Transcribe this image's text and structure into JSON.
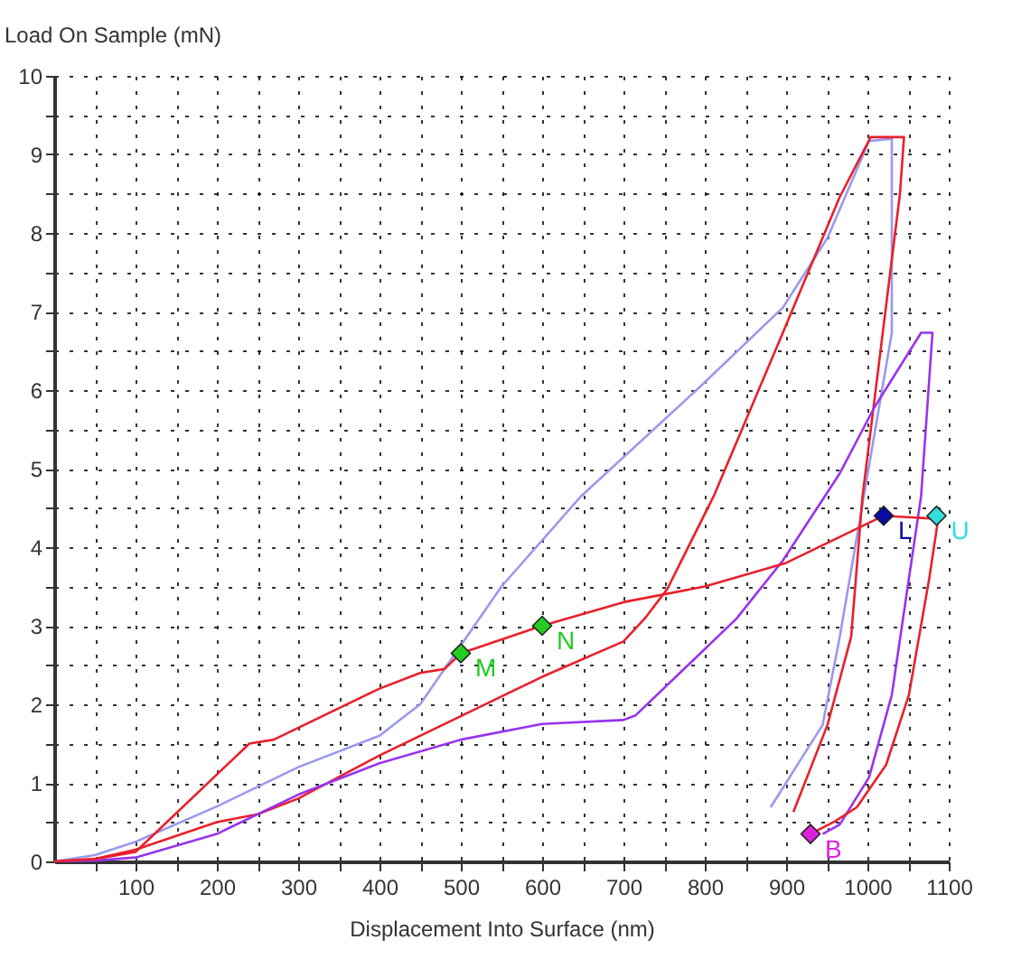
{
  "chart_data": {
    "type": "line",
    "xlabel": "Displacement Into Surface (nm)",
    "ylabel": "Load On Sample (mN)",
    "xlim": [
      0,
      1100
    ],
    "ylim": [
      0,
      10
    ],
    "xticks": [
      {
        "value": 50,
        "label": null
      },
      100,
      {
        "value": 150,
        "label": null
      },
      200,
      {
        "value": 250,
        "label": null
      },
      300,
      {
        "value": 350,
        "label": null
      },
      400,
      {
        "value": 450,
        "label": null
      },
      500,
      {
        "value": 550,
        "label": null
      },
      600,
      {
        "value": 650,
        "label": null
      },
      700,
      {
        "value": 750,
        "label": null
      },
      800,
      {
        "value": 850,
        "label": null
      },
      900,
      {
        "value": 950,
        "label": null
      },
      1000,
      {
        "value": 1050,
        "label": null
      },
      1100
    ],
    "yticks": [
      0,
      {
        "value": 0.5,
        "label": null
      },
      1,
      {
        "value": 1.5,
        "label": null
      },
      2,
      {
        "value": 2.5,
        "label": null
      },
      3,
      {
        "value": 3.5,
        "label": null
      },
      4,
      {
        "value": 4.5,
        "label": null
      },
      5,
      {
        "value": 5.5,
        "label": null
      },
      6,
      {
        "value": 6.5,
        "label": null
      },
      7,
      {
        "value": 7.5,
        "label": null
      },
      8,
      {
        "value": 8.5,
        "label": null
      },
      9,
      {
        "value": 9.5,
        "label": null
      },
      10
    ],
    "grid": true,
    "series": [
      {
        "color": "#9999ee",
        "x": [
          0,
          50,
          100,
          200,
          300,
          400,
          450,
          500,
          550,
          648,
          796,
          896,
          951,
          1002,
          1030,
          1030,
          966,
          945,
          881
        ],
        "values": [
          0,
          0.08,
          0.25,
          0.7,
          1.2,
          1.6,
          2.0,
          2.75,
          3.5,
          4.65,
          6.06,
          7.05,
          7.94,
          9.17,
          9.2,
          6.73,
          2.86,
          1.74,
          0.69
        ]
      },
      {
        "color": "#e8202a",
        "x": [
          0,
          50,
          100,
          200,
          250,
          300,
          400,
          500,
          600,
          700,
          726,
          754,
          811,
          896,
          966,
          1004,
          1045,
          1040,
          994,
          980,
          951,
          909
        ],
        "values": [
          0,
          0.03,
          0.15,
          0.5,
          0.6,
          0.8,
          1.35,
          1.85,
          2.35,
          2.8,
          3.09,
          3.47,
          4.65,
          6.73,
          8.46,
          9.22,
          9.22,
          8.5,
          4.65,
          2.86,
          1.74,
          0.63
        ]
      },
      {
        "color": "#9933ee",
        "x": [
          0,
          50,
          100,
          200,
          300,
          400,
          500,
          600,
          700,
          715,
          839,
          896,
          966,
          1008,
          1066,
          1080,
          1066,
          1051,
          1030,
          1002,
          966,
          945
        ],
        "values": [
          0,
          0.01,
          0.05,
          0.35,
          0.85,
          1.25,
          1.55,
          1.75,
          1.8,
          1.86,
          3.09,
          3.83,
          4.94,
          5.77,
          6.73,
          6.73,
          4.65,
          3.6,
          2.12,
          1.07,
          0.47,
          0.35
        ]
      },
      {
        "color": "#e8202a",
        "x": [
          0,
          50,
          100,
          240,
          270,
          400,
          450,
          480,
          500,
          600,
          700,
          800,
          900,
          1020,
          1087,
          1076,
          1051,
          1023,
          987,
          960,
          930
        ],
        "values": [
          0,
          0.03,
          0.12,
          1.5,
          1.55,
          2.2,
          2.4,
          2.45,
          2.65,
          3.0,
          3.3,
          3.5,
          3.8,
          4.4,
          4.36,
          3.6,
          2.12,
          1.23,
          0.69,
          0.51,
          0.35
        ]
      },
      {
        "type": "scatter",
        "name": "M",
        "color": "#22cc22",
        "marker": "diamond",
        "x": [
          500
        ],
        "values": [
          2.65
        ]
      },
      {
        "type": "scatter",
        "name": "N",
        "color": "#22cc22",
        "marker": "diamond",
        "x": [
          600
        ],
        "values": [
          3.0
        ]
      },
      {
        "type": "scatter",
        "name": "L",
        "color": "#0a0aa0",
        "marker": "diamond",
        "x": [
          1020
        ],
        "values": [
          4.4
        ]
      },
      {
        "type": "scatter",
        "name": "U",
        "color": "#33dddd",
        "marker": "diamond",
        "x": [
          1085
        ],
        "values": [
          4.4
        ]
      },
      {
        "type": "scatter",
        "name": "B",
        "color": "#dd22dd",
        "marker": "diamond",
        "x": [
          930
        ],
        "values": [
          0.35
        ]
      }
    ]
  }
}
